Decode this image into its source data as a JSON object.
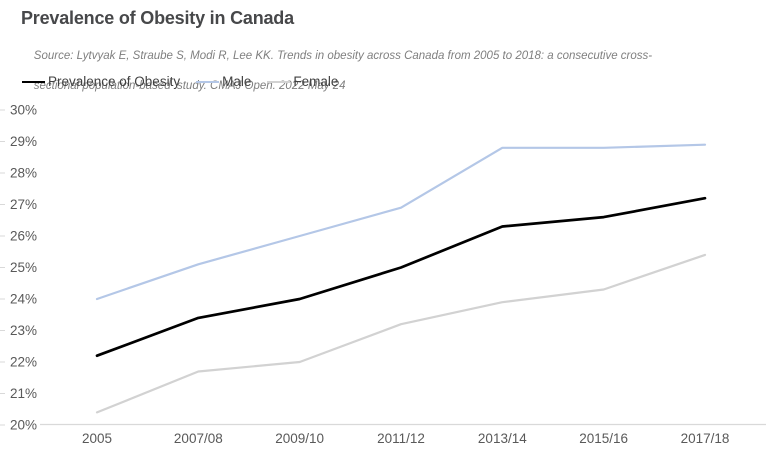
{
  "header": {
    "title": "Prevalence of Obesity in Canada",
    "source_line1": "Source: Lytvyak E, Straube S, Modi R, Lee KK. Trends in obesity across Canada from 2005 to 2018: a consecutive cross-",
    "source_line2": "sectional population-based  study. CMAJ Open. 2022 May 24"
  },
  "theme": {
    "title_color": "#47484a",
    "source_color": "#7f7f7f",
    "legend_text_color": "#404040",
    "tick_label_color": "#595959",
    "axis_line_color": "#d9d9d9"
  },
  "chart_data": {
    "type": "line",
    "title": "Prevalence of Obesity in Canada",
    "categories": [
      "2005",
      "2007/08",
      "2009/10",
      "2011/12",
      "2013/14",
      "2015/16",
      "2017/18"
    ],
    "series": [
      {
        "name": "Prevalence of Obesity",
        "color": "#000000",
        "line_width": 2.7,
        "values": [
          22.2,
          23.4,
          24.0,
          25.0,
          26.3,
          26.6,
          27.2
        ]
      },
      {
        "name": "Male",
        "color": "#b4c7e7",
        "line_width": 2.2,
        "values": [
          24.0,
          25.1,
          26.0,
          26.9,
          28.8,
          28.8,
          28.9
        ]
      },
      {
        "name": "Female",
        "color": "#d2d2d2",
        "line_width": 2.2,
        "values": [
          20.4,
          21.7,
          22.0,
          23.2,
          23.9,
          24.3,
          25.4
        ]
      }
    ],
    "xlabel": "",
    "ylabel": "",
    "ylim": [
      20,
      30
    ],
    "ytick_step": 1,
    "ytick_suffix": "%",
    "grid": false,
    "legend_position": "top-left"
  }
}
